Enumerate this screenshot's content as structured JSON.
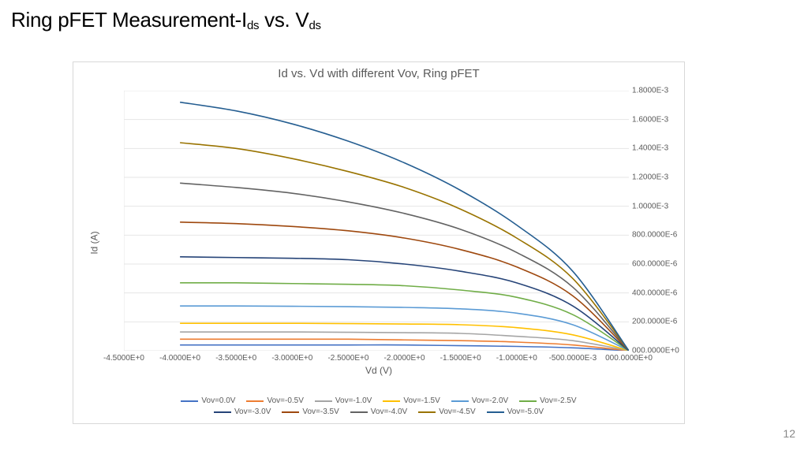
{
  "slide": {
    "title_html": "Ring pFET Measurement-I<sub>ds</sub> vs. V<sub>ds</sub>",
    "page_number": "12"
  },
  "chart": {
    "type": "line",
    "title": "Id vs. Vd with different Vov, Ring pFET",
    "xlabel": "Vd (V)",
    "ylabel": "Id (A)",
    "background_color": "#ffffff",
    "grid_color": "#e6e6e6",
    "border_color": "#d8d8d8",
    "title_fontsize": 15,
    "label_fontsize": 12,
    "tick_fontsize": 10,
    "line_width": 1.6,
    "x_axis": {
      "min": -4.5,
      "max": 0.0,
      "ticks": [
        -4.5,
        -4.0,
        -3.5,
        -3.0,
        -2.5,
        -2.0,
        -1.5,
        -1.0,
        -0.5,
        0.0
      ],
      "tick_labels": [
        "-4.5000E+0",
        "-4.0000E+0",
        "-3.5000E+0",
        "-3.0000E+0",
        "-2.5000E+0",
        "-2.0000E+0",
        "-1.5000E+0",
        "-1.0000E+0",
        "-500.0000E-3",
        "000.0000E+0"
      ]
    },
    "y_axis": {
      "min": 0.0,
      "max": 0.0018,
      "ticks": [
        0.0,
        0.0002,
        0.0004,
        0.0006,
        0.0008,
        0.001,
        0.0012,
        0.0014,
        0.0016,
        0.0018
      ],
      "tick_labels": [
        "000.0000E+0",
        "200.0000E-6",
        "400.0000E-6",
        "600.0000E-6",
        "800.0000E-6",
        "1.0000E-3",
        "1.2000E-3",
        "1.4000E-3",
        "1.6000E-3",
        "1.8000E-3"
      ]
    },
    "x_data": [
      -4.0,
      -3.5,
      -3.0,
      -2.5,
      -2.0,
      -1.5,
      -1.0,
      -0.5,
      0.0
    ],
    "series": [
      {
        "name": "Vov=0.0V",
        "color": "#4472c4",
        "y": [
          4e-05,
          4e-05,
          4e-05,
          4e-05,
          4e-05,
          3.5e-05,
          3e-05,
          2e-05,
          0.0
        ]
      },
      {
        "name": "Vov=-0.5V",
        "color": "#ed7d31",
        "y": [
          8e-05,
          8e-05,
          8e-05,
          8e-05,
          7.5e-05,
          7e-05,
          6e-05,
          4e-05,
          0.0
        ]
      },
      {
        "name": "Vov=-1.0V",
        "color": "#a5a5a5",
        "y": [
          0.00013,
          0.00013,
          0.00013,
          0.000128,
          0.000125,
          0.00012,
          0.0001,
          7e-05,
          0.0
        ]
      },
      {
        "name": "Vov=-1.5V",
        "color": "#ffc000",
        "y": [
          0.00019,
          0.00019,
          0.00019,
          0.000188,
          0.000185,
          0.00018,
          0.00016,
          0.00011,
          0.0
        ]
      },
      {
        "name": "Vov=-2.0V",
        "color": "#5b9bd5",
        "y": [
          0.00031,
          0.00031,
          0.000308,
          0.000305,
          0.0003,
          0.00029,
          0.00026,
          0.00018,
          0.0
        ]
      },
      {
        "name": "Vov=-2.5V",
        "color": "#70ad47",
        "y": [
          0.00047,
          0.00047,
          0.000465,
          0.00046,
          0.00045,
          0.00042,
          0.00037,
          0.00025,
          0.0
        ]
      },
      {
        "name": "Vov=-3.0V",
        "color": "#264478",
        "y": [
          0.00065,
          0.000645,
          0.00064,
          0.00063,
          0.0006,
          0.00055,
          0.00047,
          0.00031,
          0.0
        ]
      },
      {
        "name": "Vov=-3.5V",
        "color": "#9e480e",
        "y": [
          0.00089,
          0.00088,
          0.00086,
          0.00083,
          0.00078,
          0.0007,
          0.00058,
          0.00038,
          0.0
        ]
      },
      {
        "name": "Vov=-4.0V",
        "color": "#636363",
        "y": [
          0.00116,
          0.00113,
          0.00109,
          0.00103,
          0.00095,
          0.00084,
          0.00068,
          0.00044,
          0.0
        ]
      },
      {
        "name": "Vov=-4.5V",
        "color": "#997300",
        "y": [
          0.00144,
          0.0014,
          0.00133,
          0.00124,
          0.00113,
          0.00098,
          0.00078,
          0.0005,
          0.0
        ]
      },
      {
        "name": "Vov=-5.0V",
        "color": "#255e91",
        "y": [
          0.00172,
          0.00166,
          0.00157,
          0.00145,
          0.0013,
          0.00111,
          0.00087,
          0.00055,
          0.0
        ]
      }
    ],
    "legend": {
      "fontsize": 10,
      "rows": [
        [
          "Vov=0.0V",
          "Vov=-0.5V",
          "Vov=-1.0V",
          "Vov=-1.5V",
          "Vov=-2.0V",
          "Vov=-2.5V"
        ],
        [
          "Vov=-3.0V",
          "Vov=-3.5V",
          "Vov=-4.0V",
          "Vov=-4.5V",
          "Vov=-5.0V"
        ]
      ]
    }
  }
}
